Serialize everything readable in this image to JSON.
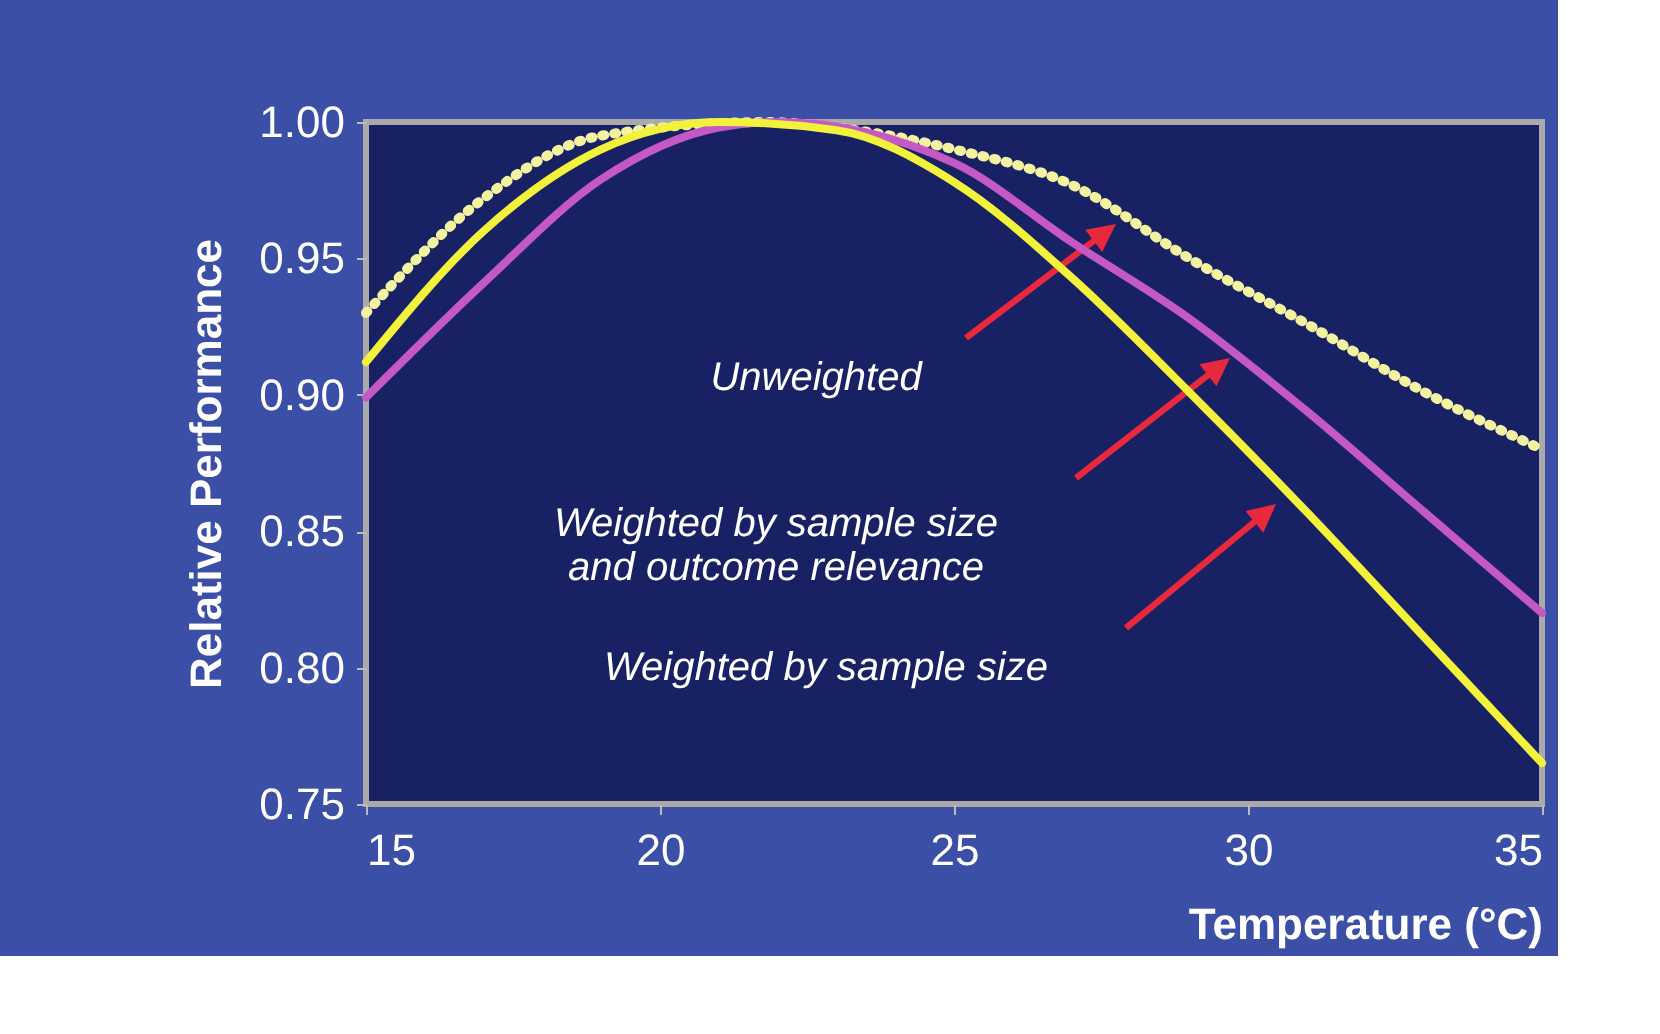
{
  "chart_data": {
    "type": "line",
    "xlabel": "Temperature (°C)",
    "ylabel": "Relative Performance",
    "xlim": [
      15,
      35
    ],
    "xticks": [
      15,
      20,
      25,
      30,
      35
    ],
    "ylim": [
      0.75,
      1.0
    ],
    "yticks": [
      {
        "value": 0.75,
        "label": "0.75"
      },
      {
        "value": 0.8,
        "label": "0.80"
      },
      {
        "value": 0.85,
        "label": "0.85"
      },
      {
        "value": 0.9,
        "label": "0.90"
      },
      {
        "value": 0.95,
        "label": "0.95"
      },
      {
        "value": 1.0,
        "label": "1.00"
      }
    ],
    "grid": false,
    "marker": "none",
    "series": [
      {
        "color": "#f2f2a0",
        "line_style": "dotted",
        "x": [
          15,
          17,
          19,
          21.8,
          23,
          25,
          27,
          29,
          31,
          33,
          35
        ],
        "values": [
          0.93,
          0.972,
          0.995,
          1.0,
          0.998,
          0.99,
          0.977,
          0.95,
          0.926,
          0.901,
          0.88
        ]
      },
      {
        "color": "#c458c4",
        "line_style": "solid",
        "x": [
          15,
          17,
          19,
          21,
          22,
          25,
          27,
          29,
          31,
          33,
          35
        ],
        "values": [
          0.899,
          0.941,
          0.979,
          0.998,
          1.0,
          0.985,
          0.956,
          0.928,
          0.894,
          0.857,
          0.82
        ]
      },
      {
        "color": "#f2f23c",
        "line_style": "solid",
        "x": [
          15,
          17,
          19,
          21,
          23,
          25,
          27,
          29,
          31,
          33,
          35
        ],
        "values": [
          0.912,
          0.96,
          0.99,
          1.0,
          0.997,
          0.978,
          0.943,
          0.901,
          0.857,
          0.811,
          0.765
        ]
      }
    ],
    "annotations": [
      "Unweighted",
      "Weighted by sample size\nand outcome relevance",
      "Weighted by sample size"
    ]
  }
}
